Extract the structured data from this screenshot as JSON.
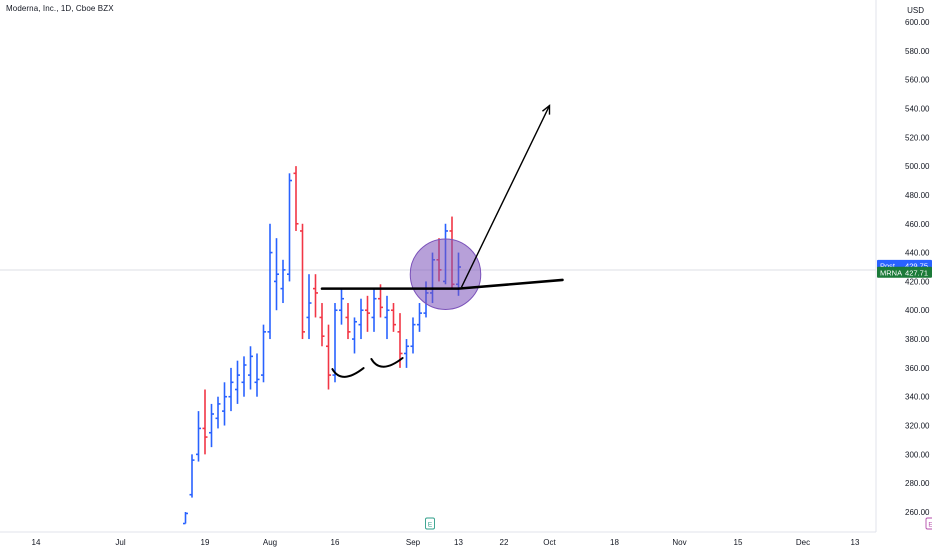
{
  "header": {
    "title": "Moderna, Inc., 1D, Cboe BZX",
    "currency": "USD"
  },
  "price_tags": {
    "post": {
      "label": "Post",
      "value": "429.75",
      "price": 429.75,
      "color": "#2962ff"
    },
    "last": {
      "label": "MRNA",
      "value": "427.71",
      "price": 427.71,
      "color": "#1b7a38"
    }
  },
  "events": [
    {
      "glyph": "E",
      "after_bar": 38,
      "color": "#2e9e89"
    },
    {
      "glyph": "E",
      "after_bar": 115,
      "color": "#b44dab"
    }
  ],
  "chart_data": {
    "type": "ohlc",
    "title": "Moderna, Inc., 1D, Cboe BZX",
    "yticks": [
      260,
      280,
      300,
      320,
      340,
      360,
      380,
      400,
      420,
      440,
      460,
      480,
      500,
      520,
      540,
      560,
      580,
      600
    ],
    "ytick_labels": [
      "260.00",
      "280.00",
      "300.00",
      "320.00",
      "340.00",
      "360.00",
      "380.00",
      "400.00",
      "420.00",
      "440.00",
      "460.00",
      "480.00",
      "500.00",
      "520.00",
      "540.00",
      "560.00",
      "580.00",
      "600.00"
    ],
    "ylim": [
      251,
      610
    ],
    "xtick_labels": [
      {
        "label": "14",
        "bar": -23
      },
      {
        "label": "Jul",
        "bar": -10
      },
      {
        "label": "19",
        "bar": 3
      },
      {
        "label": "Aug",
        "bar": 13
      },
      {
        "label": "16",
        "bar": 23
      },
      {
        "label": "Sep",
        "bar": 35
      },
      {
        "label": "13",
        "bar": 42
      },
      {
        "label": "22",
        "bar": 49
      },
      {
        "label": "Oct",
        "bar": 56
      },
      {
        "label": "18",
        "bar": 66
      },
      {
        "label": "Nov",
        "bar": 76
      },
      {
        "label": "15",
        "bar": 85
      },
      {
        "label": "Dec",
        "bar": 95
      },
      {
        "label": "13",
        "bar": 103
      }
    ],
    "up_color": "#2962ff",
    "down_color": "#f23645",
    "bars": [
      [
        252,
        260,
        252,
        259
      ],
      [
        272,
        300,
        270,
        296
      ],
      [
        300,
        330,
        295,
        318
      ],
      [
        318,
        345,
        300,
        312
      ],
      [
        315,
        335,
        305,
        328
      ],
      [
        325,
        340,
        318,
        335
      ],
      [
        330,
        350,
        320,
        340
      ],
      [
        340,
        360,
        330,
        350
      ],
      [
        345,
        365,
        335,
        355
      ],
      [
        350,
        368,
        340,
        362
      ],
      [
        355,
        375,
        345,
        368
      ],
      [
        350,
        370,
        340,
        352
      ],
      [
        355,
        390,
        350,
        385
      ],
      [
        385,
        460,
        380,
        440
      ],
      [
        420,
        450,
        400,
        425
      ],
      [
        415,
        435,
        405,
        428
      ],
      [
        425,
        495,
        420,
        490
      ],
      [
        495,
        500,
        455,
        460
      ],
      [
        455,
        460,
        380,
        385
      ],
      [
        395,
        425,
        380,
        405
      ],
      [
        415,
        425,
        395,
        412
      ],
      [
        395,
        405,
        375,
        382
      ],
      [
        375,
        390,
        345,
        355
      ],
      [
        355,
        405,
        350,
        400
      ],
      [
        400,
        415,
        390,
        408
      ],
      [
        395,
        405,
        380,
        385
      ],
      [
        380,
        395,
        370,
        392
      ],
      [
        390,
        408,
        380,
        400
      ],
      [
        400,
        410,
        385,
        398
      ],
      [
        395,
        415,
        385,
        408
      ],
      [
        408,
        418,
        395,
        402
      ],
      [
        395,
        410,
        380,
        400
      ],
      [
        400,
        405,
        385,
        390
      ],
      [
        385,
        398,
        360,
        370
      ],
      [
        370,
        380,
        360,
        375
      ],
      [
        375,
        395,
        370,
        390
      ],
      [
        390,
        405,
        385,
        398
      ],
      [
        398,
        420,
        395,
        412
      ],
      [
        412,
        440,
        405,
        435
      ],
      [
        435,
        450,
        420,
        428
      ],
      [
        420,
        460,
        418,
        455
      ],
      [
        455,
        465,
        415,
        418
      ],
      [
        418,
        440,
        410,
        430
      ]
    ]
  },
  "annotations": {
    "arrow": {
      "from": {
        "bar": 42,
        "price": 416
      },
      "to": {
        "bar": 56,
        "price": 542
      }
    },
    "resistance_line": {
      "from": {
        "bar": 21,
        "price": 415
      },
      "to": {
        "bar": 42,
        "price": 415
      },
      "extend_to": {
        "bar": 58,
        "price": 421
      }
    },
    "circle": {
      "bar": 40,
      "price": 425,
      "radius_bars": 3.5
    },
    "cups": [
      {
        "bar": 25,
        "price": 355,
        "width_bars": 2.4
      },
      {
        "bar": 31,
        "price": 362,
        "width_bars": 2.4
      }
    ]
  }
}
